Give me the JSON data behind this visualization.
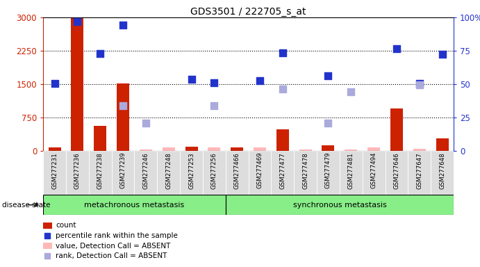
{
  "title": "GDS3501 / 222705_s_at",
  "samples": [
    "GSM277231",
    "GSM277236",
    "GSM277238",
    "GSM277239",
    "GSM277246",
    "GSM277248",
    "GSM277253",
    "GSM277256",
    "GSM277466",
    "GSM277469",
    "GSM277477",
    "GSM277478",
    "GSM277479",
    "GSM277481",
    "GSM277494",
    "GSM277646",
    "GSM277647",
    "GSM277648"
  ],
  "group1_label": "metachronous metastasis",
  "group2_label": "synchronous metastasis",
  "group1_count": 8,
  "group2_count": 10,
  "bar_present": [
    80,
    3000,
    560,
    1520,
    null,
    null,
    90,
    null,
    80,
    null,
    480,
    null,
    120,
    null,
    null,
    950,
    null,
    280
  ],
  "bar_absent": [
    null,
    null,
    null,
    null,
    30,
    70,
    null,
    70,
    null,
    70,
    null,
    30,
    null,
    30,
    70,
    null,
    40,
    null
  ],
  "dot_blue_present": [
    1520,
    2900,
    2190,
    2820,
    null,
    null,
    1610,
    1530,
    null,
    1570,
    2200,
    null,
    1680,
    null,
    null,
    null,
    null,
    2170
  ],
  "dot_blue_absent": [
    null,
    null,
    null,
    null,
    null,
    null,
    null,
    null,
    null,
    null,
    null,
    null,
    null,
    null,
    null,
    2290,
    1520,
    null
  ],
  "dot_lb_present": [
    null,
    null,
    null,
    1020,
    630,
    null,
    null,
    1020,
    null,
    null,
    1390,
    null,
    620,
    1320,
    null,
    null,
    null,
    null
  ],
  "dot_lb_absent": [
    null,
    null,
    null,
    null,
    null,
    null,
    null,
    null,
    null,
    null,
    null,
    null,
    null,
    null,
    null,
    null,
    1490,
    null
  ],
  "ylim_left": [
    0,
    3000
  ],
  "ylim_right": [
    0,
    100
  ],
  "yticks_left": [
    0,
    750,
    1500,
    2250,
    3000
  ],
  "yticks_right": [
    0,
    25,
    50,
    75,
    100
  ],
  "bar_color": "#cc2200",
  "bar_absent_color": "#ffb8b8",
  "dot_blue_color": "#2233cc",
  "dot_lb_color": "#aaaadd",
  "group_bg_color": "#88ee88",
  "sample_bg_color": "#dddddd",
  "title_fontsize": 10,
  "legend_items": [
    "count",
    "percentile rank within the sample",
    "value, Detection Call = ABSENT",
    "rank, Detection Call = ABSENT"
  ],
  "legend_colors": [
    "#cc2200",
    "#2233cc",
    "#ffb8b8",
    "#aaaadd"
  ]
}
